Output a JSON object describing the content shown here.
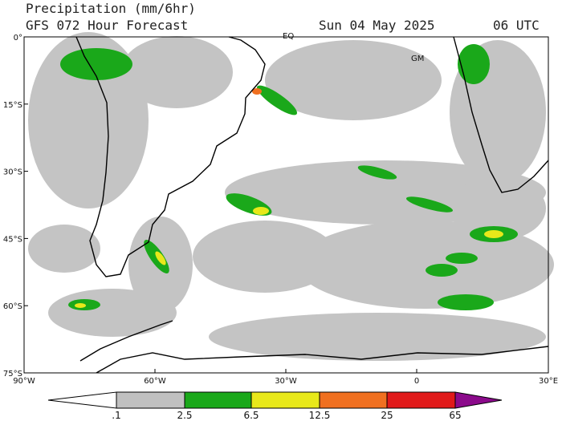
{
  "header": {
    "title": "Precipitation (mm/6hr)",
    "subtitle": "GFS 072 Hour Forecast",
    "date": "Sun 04 May 2025",
    "time": "06 UTC"
  },
  "map": {
    "lat_labels": [
      "0°",
      "15°S",
      "30°S",
      "45°S",
      "60°S",
      "75°S"
    ],
    "lon_labels": [
      "90°W",
      "60°W",
      "30°W",
      "0",
      "30°E"
    ],
    "place_labels": [
      "EQ",
      "GM"
    ]
  },
  "colorbar": {
    "labels": [
      ".1",
      "2.5",
      "6.5",
      "12.5",
      "25",
      "65"
    ]
  }
}
